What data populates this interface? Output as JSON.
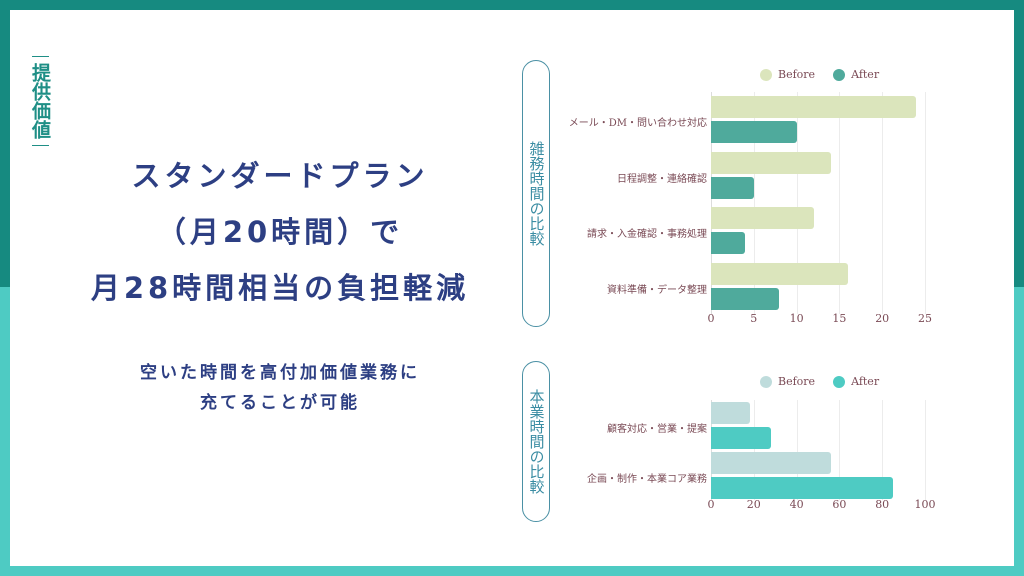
{
  "side_label": "提供価値",
  "headline": {
    "line1": "スタンダードプラン",
    "line2": "（月20時間）で",
    "line3": "月28時間相当の負担軽減"
  },
  "subline": {
    "line1": "空いた時間を高付加価値業務に",
    "line2": "充てることが可能"
  },
  "pills": {
    "chart1": "雑務時間の比較",
    "chart2": "本業時間の比較"
  },
  "colors": {
    "frame_top": "#168a80",
    "frame_bottom": "#4ecbc3",
    "headline": "#2d3f83",
    "chart1_before": "#dbe5bc",
    "chart1_after": "#4faa9c",
    "chart2_before": "#bfdcdc",
    "chart2_after": "#4ecbc3"
  },
  "chart_data": [
    {
      "type": "bar",
      "orientation": "horizontal",
      "title": "雑務時間の比較",
      "categories": [
        "メール・DM・問い合わせ対応",
        "日程調整・連絡確認",
        "請求・入金確認・事務処理",
        "資料準備・データ整理"
      ],
      "series": [
        {
          "name": "Before",
          "values": [
            24,
            14,
            12,
            16
          ]
        },
        {
          "name": "After",
          "values": [
            10,
            5,
            4,
            8
          ]
        }
      ],
      "xlim": [
        0,
        25
      ],
      "xticks": [
        "0",
        "5",
        "10",
        "15",
        "20",
        "25"
      ],
      "legend_position": "top",
      "grid": true
    },
    {
      "type": "bar",
      "orientation": "horizontal",
      "title": "本業時間の比較",
      "categories": [
        "顧客対応・営業・提案",
        "企画・制作・本業コア業務"
      ],
      "series": [
        {
          "name": "Before",
          "values": [
            18,
            56
          ]
        },
        {
          "name": "After",
          "values": [
            28,
            85
          ]
        }
      ],
      "xlim": [
        0,
        100
      ],
      "xticks": [
        "0",
        "20",
        "40",
        "60",
        "80",
        "100"
      ],
      "legend_position": "top",
      "grid": true
    }
  ]
}
